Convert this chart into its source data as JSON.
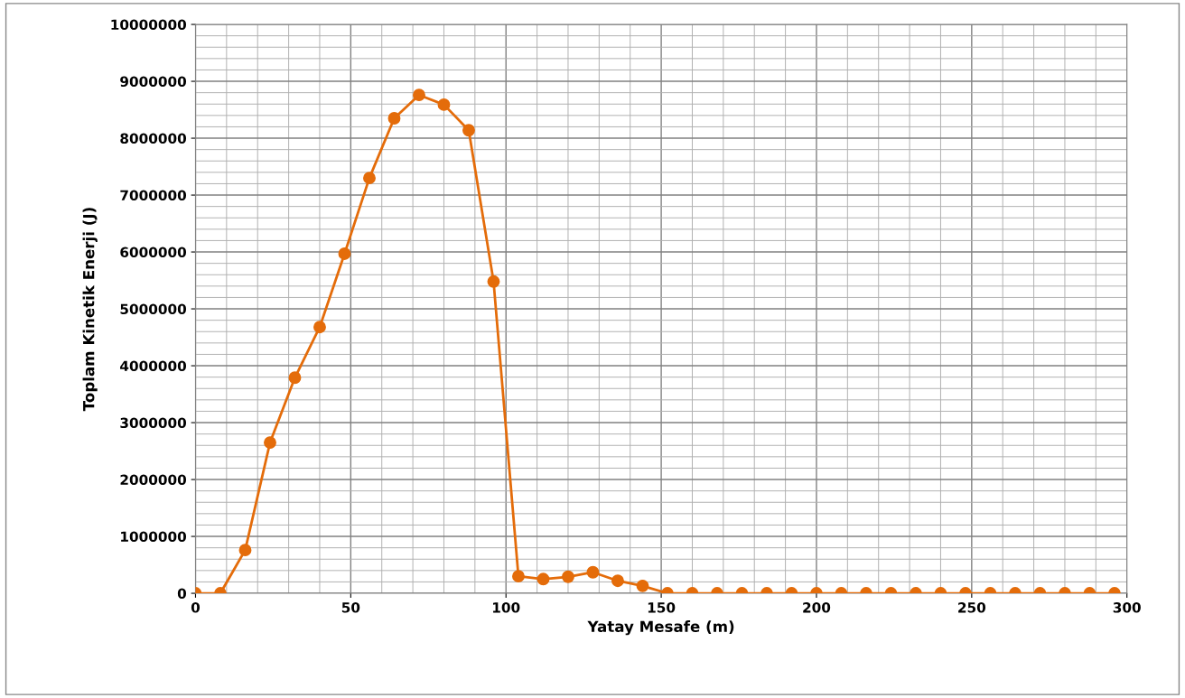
{
  "chart_data": {
    "type": "line",
    "xlabel": "Yatay Mesafe (m)",
    "ylabel": "Toplam Kinetik Enerji (J)",
    "x": [
      0,
      8,
      16,
      24,
      32,
      40,
      48,
      56,
      64,
      72,
      80,
      88,
      96,
      104,
      112,
      120,
      128,
      136,
      144,
      152,
      160,
      168,
      176,
      184,
      192,
      200,
      208,
      216,
      224,
      232,
      240,
      248,
      256,
      264,
      272,
      280,
      288,
      296
    ],
    "series": [
      {
        "color": "#e46c0a",
        "values": [
          0,
          0,
          760000,
          2650000,
          3790000,
          4680000,
          5970000,
          7300000,
          8350000,
          8760000,
          8590000,
          8140000,
          5480000,
          300000,
          250000,
          290000,
          370000,
          220000,
          130000,
          0,
          0,
          0,
          0,
          0,
          0,
          0,
          0,
          0,
          0,
          0,
          0,
          0,
          0,
          0,
          0,
          0,
          0,
          0
        ]
      }
    ],
    "xlim": [
      0,
      300
    ],
    "xticks": [
      0,
      50,
      100,
      150,
      200,
      250,
      300
    ],
    "ylim": [
      0,
      10000000
    ],
    "yticks": [
      0,
      1000000,
      2000000,
      3000000,
      4000000,
      5000000,
      6000000,
      7000000,
      8000000,
      9000000,
      10000000
    ],
    "grid": true,
    "marker": "circle",
    "line_style": "solid"
  }
}
